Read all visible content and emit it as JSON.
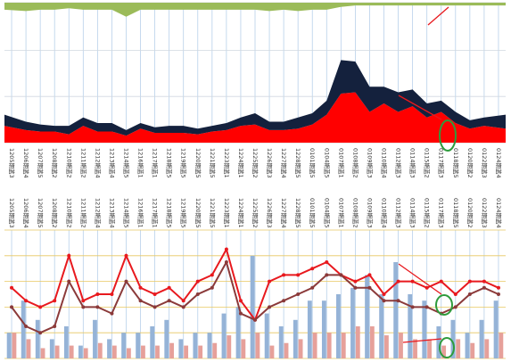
{
  "chart_data": [
    {
      "type": "area",
      "stacked": true,
      "categories": [
        "1205期蓝3",
        "1206期蓝4",
        "1207期蓝5",
        "1208期蓝2",
        "1210期蓝2",
        "1211期蓝2",
        "1212期蓝4",
        "1213期蓝4",
        "1214期蓝5",
        "1216期蓝1",
        "1217期蓝1",
        "1218期蓝5",
        "1219期蓝5",
        "1220期蓝5",
        "1221期蓝5",
        "1223期蓝1",
        "1224期蓝1",
        "1225期蓝2",
        "1226期蓝3",
        "1227期蓝4",
        "1228期蓝5",
        "0101期蓝5",
        "0104期蓝5",
        "0107期蓝1",
        "0108期蓝2",
        "0109期蓝3",
        "0110期蓝4",
        "0112期蓝3",
        "0114期蓝3",
        "0115期蓝2",
        "0117期蓝3",
        "0118期蓝5",
        "0120期蓝2",
        "0122期蓝3",
        "0124期蓝4"
      ],
      "series": [
        {
          "color": "#ff0000",
          "values": [
            12,
            9,
            8,
            8,
            6,
            12,
            8,
            8,
            5,
            10,
            7,
            7,
            7,
            6,
            8,
            9,
            12,
            13,
            9,
            9,
            10,
            13,
            20,
            35,
            36,
            22,
            28,
            22,
            26,
            18,
            22,
            14,
            10,
            12,
            10
          ]
        },
        {
          "color": "#14213d",
          "values": [
            8,
            6,
            5,
            4,
            6,
            6,
            6,
            6,
            4,
            4,
            4,
            5,
            5,
            4,
            4,
            5,
            6,
            8,
            6,
            6,
            8,
            8,
            10,
            24,
            22,
            18,
            12,
            14,
            12,
            10,
            8,
            8,
            6,
            6,
            10
          ]
        },
        {
          "color": "#9bbb59",
          "baseline": "top",
          "values": [
            5,
            6,
            5,
            5,
            4,
            5,
            5,
            5,
            10,
            5,
            5,
            5,
            5,
            5,
            5,
            5,
            5,
            5,
            6,
            5,
            6,
            5,
            5,
            3,
            2,
            2,
            2,
            2,
            2,
            2,
            2,
            2,
            2,
            2,
            2
          ]
        }
      ],
      "ylim": [
        0,
        100
      ],
      "yticks": [
        0,
        33,
        66,
        100
      ],
      "grid": true
    },
    {
      "type": "bar",
      "categories": [
        "1205期蓝3",
        "1206期蓝4",
        "1207期蓝5",
        "1208期蓝2",
        "1210期蓝2",
        "1211期蓝2",
        "1212期蓝4",
        "1213期蓝4",
        "1214期蓝5",
        "1216期蓝1",
        "1217期蓝1",
        "1218期蓝5",
        "1219期蓝5",
        "1220期蓝5",
        "1221期蓝5",
        "1223期蓝1",
        "1224期蓝1",
        "1225期蓝2",
        "1226期蓝3",
        "1227期蓝4",
        "1228期蓝5",
        "0101期蓝5",
        "0104期蓝5",
        "0107期蓝1",
        "0108期蓝2",
        "0109期蓝3",
        "0110期蓝4",
        "0112期蓝3",
        "0114期蓝3",
        "0115期蓝2",
        "0117期蓝3",
        "0118期蓝5",
        "0120期蓝2",
        "0122期蓝3",
        "0124期蓝4"
      ],
      "series": [
        {
          "color": "#95b3d7",
          "values": [
            20,
            45,
            30,
            15,
            25,
            10,
            30,
            15,
            20,
            20,
            25,
            30,
            15,
            20,
            20,
            35,
            40,
            80,
            35,
            25,
            30,
            45,
            45,
            50,
            55,
            65,
            50,
            75,
            50,
            45,
            25,
            30,
            20,
            30,
            45
          ]
        },
        {
          "color": "#e6a09a",
          "values": [
            20,
            15,
            8,
            10,
            10,
            8,
            12,
            10,
            8,
            10,
            10,
            12,
            10,
            10,
            12,
            18,
            15,
            20,
            10,
            12,
            15,
            20,
            20,
            20,
            25,
            25,
            18,
            20,
            15,
            15,
            10,
            15,
            12,
            15,
            20
          ]
        },
        {
          "type": "line",
          "color": "#e8191e",
          "values": [
            55,
            45,
            40,
            45,
            80,
            45,
            50,
            50,
            80,
            55,
            50,
            55,
            45,
            60,
            65,
            85,
            45,
            30,
            60,
            65,
            65,
            70,
            75,
            65,
            60,
            65,
            50,
            60,
            60,
            55,
            60,
            50,
            60,
            60,
            55
          ]
        },
        {
          "type": "line",
          "color": "#8b3a3a",
          "values": [
            40,
            25,
            20,
            25,
            60,
            40,
            40,
            35,
            60,
            45,
            40,
            45,
            40,
            50,
            55,
            75,
            35,
            30,
            40,
            45,
            50,
            55,
            65,
            65,
            55,
            55,
            45,
            45,
            40,
            40,
            35,
            40,
            50,
            55,
            50
          ]
        }
      ],
      "ylim": [
        0,
        100
      ],
      "yticks": [
        0,
        20,
        40,
        60,
        80,
        100
      ],
      "grid": true,
      "grid_color": "#e8c860"
    }
  ]
}
